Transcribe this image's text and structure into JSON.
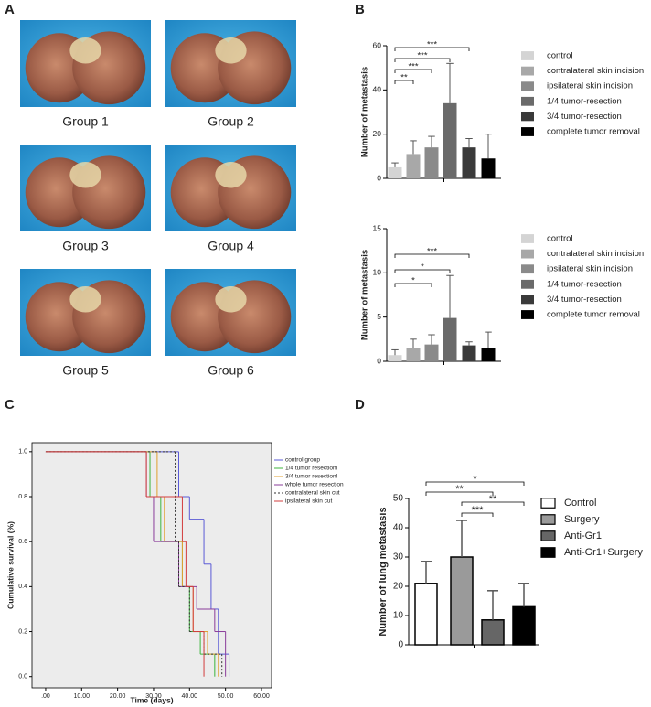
{
  "panel_labels": [
    "A",
    "B",
    "C",
    "D"
  ],
  "photo_panel": {
    "captions": [
      "Group 1",
      "Group 2",
      "Group 3",
      "Group 4",
      "Group 5",
      "Group 6"
    ]
  },
  "chart_data": [
    {
      "type": "bar",
      "ylabel": "Number of metastasis",
      "categories": [
        "control",
        "contralateral skin incision",
        "ipsilateral skin incision",
        "1/4 tumor-resection",
        "3/4 tumor-resection",
        "complete tumor removal"
      ],
      "values": [
        5,
        11,
        14,
        34,
        14,
        9
      ],
      "errors": [
        2,
        6,
        5,
        18,
        4,
        11
      ],
      "colors": [
        "#d4d4d4",
        "#a8a8a8",
        "#8a8a8a",
        "#6a6a6a",
        "#3a3a3a",
        "#000000"
      ],
      "ylim": [
        0,
        60
      ],
      "yticks": [
        0,
        20,
        40,
        60
      ],
      "annotations": [
        {
          "text": "**",
          "from": 0,
          "to": 1
        },
        {
          "text": "***",
          "from": 0,
          "to": 2
        },
        {
          "text": "***",
          "from": 0,
          "to": 3
        },
        {
          "text": "***",
          "from": 0,
          "to": 4
        }
      ]
    },
    {
      "type": "bar",
      "ylabel": "Number of metastasis",
      "categories": [
        "control",
        "contralateral skin incision",
        "ipsilateral skin incision",
        "1/4 tumor-resection",
        "3/4 tumor-resection",
        "complete tumor removal"
      ],
      "values": [
        0.7,
        1.5,
        1.9,
        4.9,
        1.8,
        1.5
      ],
      "errors": [
        0.6,
        1.0,
        1.1,
        4.8,
        0.4,
        1.8
      ],
      "colors": [
        "#d4d4d4",
        "#a8a8a8",
        "#8a8a8a",
        "#6a6a6a",
        "#3a3a3a",
        "#000000"
      ],
      "ylim": [
        0,
        15
      ],
      "yticks": [
        0,
        5,
        10,
        15
      ],
      "annotations": [
        {
          "text": "*",
          "from": 0,
          "to": 2
        },
        {
          "text": "*",
          "from": 0,
          "to": 3
        },
        {
          "text": "***",
          "from": 0,
          "to": 4
        }
      ]
    },
    {
      "type": "step",
      "xlabel": "Time (days)",
      "ylabel": "Cumulative survival (%)",
      "xlim": [
        -3.8,
        62.8
      ],
      "ylim": [
        -0.05,
        1.04
      ],
      "xticks": [
        {
          "value": 0,
          "label": ".00"
        },
        {
          "value": 10,
          "label": "10.00"
        },
        {
          "value": 20,
          "label": "20.00"
        },
        {
          "value": 30,
          "label": "30.00"
        },
        {
          "value": 40,
          "label": "40.00"
        },
        {
          "value": 50,
          "label": "50.00"
        },
        {
          "value": 60,
          "label": "60.00"
        }
      ],
      "yticks": [
        {
          "value": 0,
          "label": "0.0"
        },
        {
          "value": 0.2,
          "label": "0.2"
        },
        {
          "value": 0.4,
          "label": "0.4"
        },
        {
          "value": 0.6,
          "label": "0.6"
        },
        {
          "value": 0.8,
          "label": "0.8"
        },
        {
          "value": 1,
          "label": "1.0"
        }
      ],
      "series": [
        {
          "name": "control group",
          "color": "#5a5ad6",
          "style": "solid",
          "x": [
            0,
            37,
            40,
            44,
            46,
            48,
            51
          ],
          "values": [
            1,
            0.8,
            0.7,
            0.5,
            0.3,
            0.1,
            0
          ]
        },
        {
          "name": "1/4 tumor resectionl",
          "color": "#3cb43c",
          "style": "solid",
          "x": [
            0,
            29,
            32,
            38,
            40,
            43,
            47
          ],
          "values": [
            1,
            0.8,
            0.6,
            0.4,
            0.2,
            0.1,
            0
          ]
        },
        {
          "name": "3/4 tumor resectionl",
          "color": "#e0a030",
          "style": "solid",
          "x": [
            0,
            31,
            33,
            38,
            41,
            45,
            48
          ],
          "values": [
            1,
            0.8,
            0.6,
            0.4,
            0.2,
            0.1,
            0
          ]
        },
        {
          "name": "whole tumor resection",
          "color": "#8a3c9a",
          "style": "solid",
          "x": [
            0,
            28,
            30,
            37,
            42,
            47,
            50
          ],
          "values": [
            1,
            0.8,
            0.6,
            0.4,
            0.3,
            0.2,
            0
          ]
        },
        {
          "name": "contralateral skin cut",
          "color": "#333333",
          "style": "dashed",
          "x": [
            0,
            36,
            37,
            40,
            44,
            49
          ],
          "values": [
            1,
            0.6,
            0.4,
            0.2,
            0.1,
            0
          ]
        },
        {
          "name": "ipsilateral skin cut",
          "color": "#d23c3c",
          "style": "solid",
          "x": [
            0,
            28,
            38,
            39,
            41,
            44
          ],
          "values": [
            1,
            0.8,
            0.6,
            0.4,
            0.2,
            0
          ]
        }
      ]
    },
    {
      "type": "bar",
      "ylabel": "Number of lung metastasis",
      "categories": [
        "Control",
        "Surgery",
        "Anti-Gr1",
        "Anti-Gr1+Surgery"
      ],
      "values": [
        21,
        30,
        8.5,
        13
      ],
      "errors": [
        7.5,
        12.5,
        10,
        8
      ],
      "colors": [
        "#ffffff",
        "#9a9a9a",
        "#666666",
        "#000000"
      ],
      "edgecolor": "#000000",
      "ylim": [
        0,
        50
      ],
      "yticks": [
        0,
        10,
        20,
        30,
        40,
        50
      ],
      "annotations": [
        {
          "text": "*",
          "from": 0,
          "to": 3
        },
        {
          "text": "**",
          "from": 0,
          "to": 2
        },
        {
          "text": "**",
          "from": 1,
          "to": 3
        },
        {
          "text": "***",
          "from": 1,
          "to": 2
        }
      ]
    }
  ]
}
